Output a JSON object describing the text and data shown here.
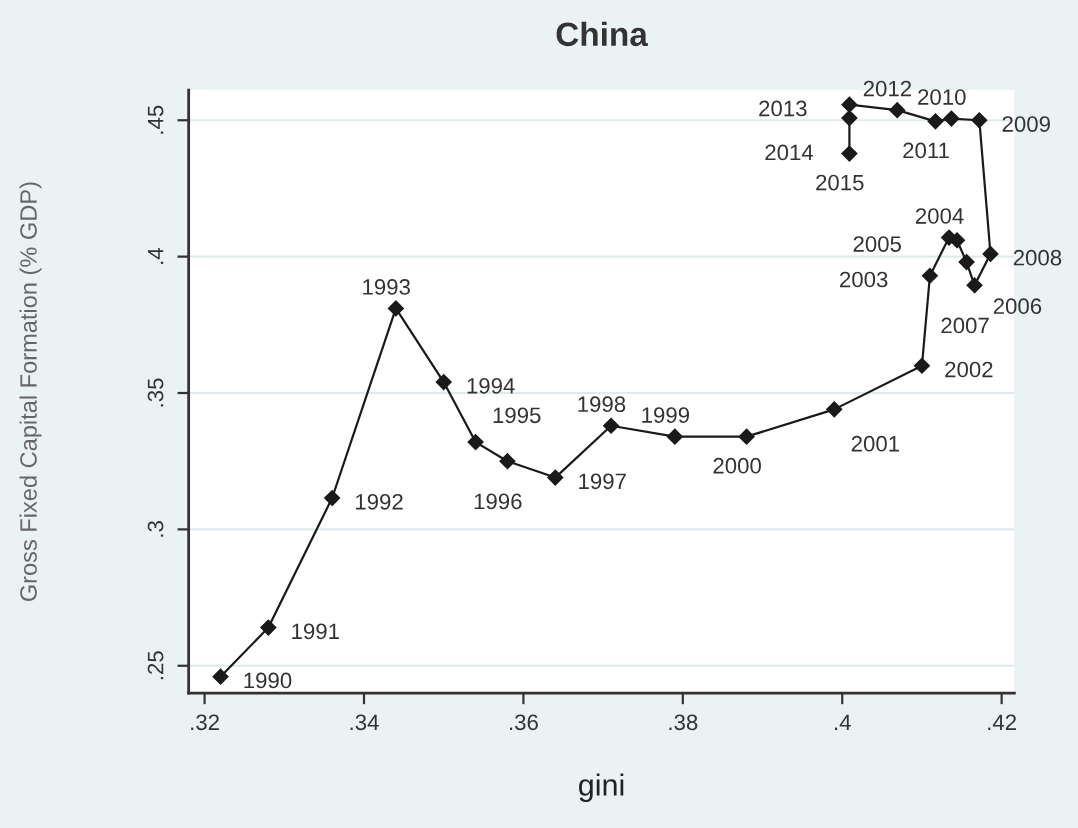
{
  "chart_data": {
    "type": "line",
    "title": "China",
    "xlabel": "gini",
    "ylabel": "Gross Fixed Capital Formation (% GDP)",
    "x": [
      0.322,
      0.328,
      0.336,
      0.344,
      0.35,
      0.354,
      0.358,
      0.364,
      0.371,
      0.379,
      0.388,
      0.399,
      0.41,
      0.411,
      0.4134,
      0.4144,
      0.4156,
      0.4166,
      0.4186,
      0.4172,
      0.4137,
      0.4117,
      0.4069,
      0.4009,
      0.4009,
      0.4009
    ],
    "values": [
      0.246,
      0.264,
      0.3115,
      0.381,
      0.354,
      0.332,
      0.325,
      0.319,
      0.338,
      0.334,
      0.334,
      0.344,
      0.36,
      0.393,
      0.407,
      0.406,
      0.398,
      0.3895,
      0.401,
      0.45,
      0.4506,
      0.4496,
      0.4537,
      0.4557,
      0.4508,
      0.4378
    ],
    "color": "#1a1a1a",
    "marker": "diamond",
    "line_style": "solid",
    "xlim": [
      0.318,
      0.4216
    ],
    "ylim": [
      0.24,
      0.461
    ],
    "xticks": [
      {
        "value": 0.32,
        "label": ".32"
      },
      {
        "value": 0.34,
        "label": ".34"
      },
      {
        "value": 0.36,
        "label": ".36"
      },
      {
        "value": 0.38,
        "label": ".38"
      },
      {
        "value": 0.4,
        "label": ".4"
      },
      {
        "value": 0.42,
        "label": ".42"
      }
    ],
    "yticks": [
      {
        "value": 0.25,
        "label": ".25"
      },
      {
        "value": 0.3,
        "label": ".3"
      },
      {
        "value": 0.35,
        "label": ".35"
      },
      {
        "value": 0.4,
        "label": ".4"
      },
      {
        "value": 0.45,
        "label": ".45"
      }
    ],
    "grid": "y",
    "annotations": [
      {
        "text": "1990",
        "x": 0.322,
        "y": 0.246
      },
      {
        "text": "1991",
        "x": 0.328,
        "y": 0.264
      },
      {
        "text": "1992",
        "x": 0.336,
        "y": 0.3115
      },
      {
        "text": "1993",
        "x": 0.344,
        "y": 0.381
      },
      {
        "text": "1994",
        "x": 0.35,
        "y": 0.354
      },
      {
        "text": "1995",
        "x": 0.354,
        "y": 0.332
      },
      {
        "text": "1996",
        "x": 0.358,
        "y": 0.325
      },
      {
        "text": "1997",
        "x": 0.364,
        "y": 0.319
      },
      {
        "text": "1998",
        "x": 0.371,
        "y": 0.338
      },
      {
        "text": "1999",
        "x": 0.379,
        "y": 0.334
      },
      {
        "text": "2000",
        "x": 0.388,
        "y": 0.334
      },
      {
        "text": "2001",
        "x": 0.399,
        "y": 0.344
      },
      {
        "text": "2002",
        "x": 0.41,
        "y": 0.36
      },
      {
        "text": "2003",
        "x": 0.411,
        "y": 0.393
      },
      {
        "text": "2004",
        "x": 0.4134,
        "y": 0.407
      },
      {
        "text": "2005",
        "x": 0.4144,
        "y": 0.406
      },
      {
        "text": "2006",
        "x": 0.4156,
        "y": 0.398
      },
      {
        "text": "2007",
        "x": 0.4166,
        "y": 0.3895
      },
      {
        "text": "2008",
        "x": 0.4186,
        "y": 0.401
      },
      {
        "text": "2009",
        "x": 0.4172,
        "y": 0.45
      },
      {
        "text": "2010",
        "x": 0.4137,
        "y": 0.4506
      },
      {
        "text": "2011",
        "x": 0.4117,
        "y": 0.4496
      },
      {
        "text": "2012",
        "x": 0.4069,
        "y": 0.4537
      },
      {
        "text": "2013",
        "x": 0.4009,
        "y": 0.4557
      },
      {
        "text": "2014",
        "x": 0.4009,
        "y": 0.4508
      },
      {
        "text": "2015",
        "x": 0.4009,
        "y": 0.4378
      }
    ]
  }
}
